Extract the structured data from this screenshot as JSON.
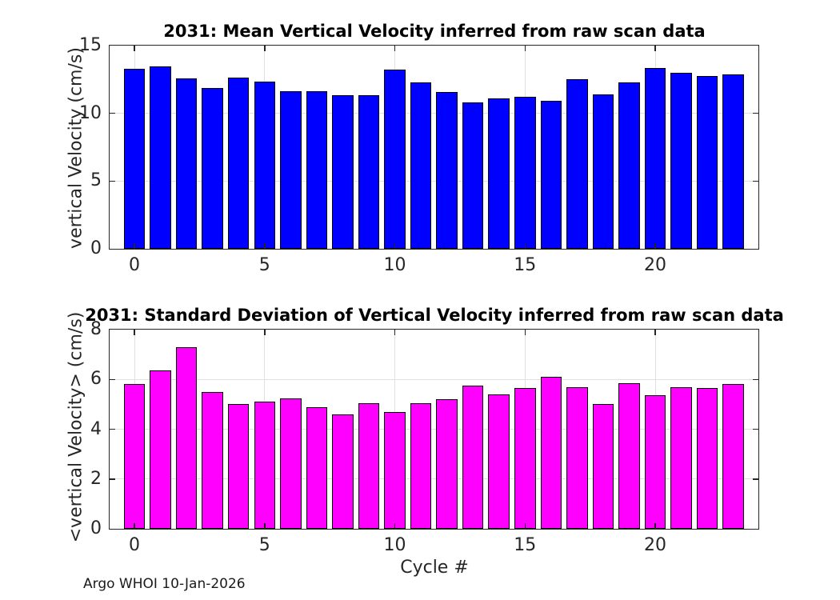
{
  "figure": {
    "footer": "Argo WHOI 10-Jan-2026"
  },
  "colors": {
    "mean_bar": "#0000ff",
    "std_bar": "#ff00ff",
    "bar_edge": "#000000",
    "axis": "#262626",
    "grid": "#e0e0e0",
    "title_text": "#000000"
  },
  "chart_data": [
    {
      "type": "bar",
      "title": "2031: Mean Vertical Velocity inferred from raw scan data",
      "xlabel": "",
      "ylabel": "vertical Velocity (cm/s)",
      "bar_color": "#0000ff",
      "grid": true,
      "x": [
        0,
        1,
        2,
        3,
        4,
        5,
        6,
        7,
        8,
        9,
        10,
        11,
        12,
        13,
        14,
        15,
        16,
        17,
        18,
        19,
        20,
        21,
        22,
        23
      ],
      "values": [
        13.3,
        13.45,
        12.6,
        11.85,
        12.65,
        12.35,
        11.65,
        11.65,
        11.35,
        11.35,
        13.25,
        12.3,
        11.6,
        10.8,
        11.1,
        11.2,
        10.95,
        12.5,
        11.4,
        12.3,
        13.35,
        13.0,
        12.75,
        12.9
      ],
      "ylim": [
        0,
        15
      ],
      "xlim": [
        -0.95,
        23.95
      ],
      "yticks": [
        0,
        5,
        10,
        15
      ],
      "xticks": [
        0,
        5,
        10,
        15,
        20
      ],
      "ytick_labels": [
        "0",
        "5",
        "10",
        "15"
      ],
      "xtick_labels": [
        "0",
        "5",
        "10",
        "15",
        "20"
      ]
    },
    {
      "type": "bar",
      "title": "2031: Standard Deviation of Vertical Velocity inferred from raw scan data",
      "xlabel": "Cycle #",
      "ylabel": "<vertical Velocity> (cm/s)",
      "bar_color": "#ff00ff",
      "grid": true,
      "x": [
        0,
        1,
        2,
        3,
        4,
        5,
        6,
        7,
        8,
        9,
        10,
        11,
        12,
        13,
        14,
        15,
        16,
        17,
        18,
        19,
        20,
        21,
        22,
        23
      ],
      "values": [
        5.8,
        6.35,
        7.3,
        5.5,
        5.0,
        5.1,
        5.25,
        4.9,
        4.6,
        5.05,
        4.7,
        5.05,
        5.2,
        5.75,
        5.4,
        5.65,
        6.1,
        5.7,
        5.0,
        5.85,
        5.35,
        5.7,
        5.65,
        5.8
      ],
      "ylim": [
        0,
        8
      ],
      "xlim": [
        -0.95,
        23.95
      ],
      "yticks": [
        0,
        2,
        4,
        6,
        8
      ],
      "xticks": [
        0,
        5,
        10,
        15,
        20
      ],
      "ytick_labels": [
        "0",
        "2",
        "4",
        "6",
        "8"
      ],
      "xtick_labels": [
        "0",
        "5",
        "10",
        "15",
        "20"
      ]
    }
  ]
}
